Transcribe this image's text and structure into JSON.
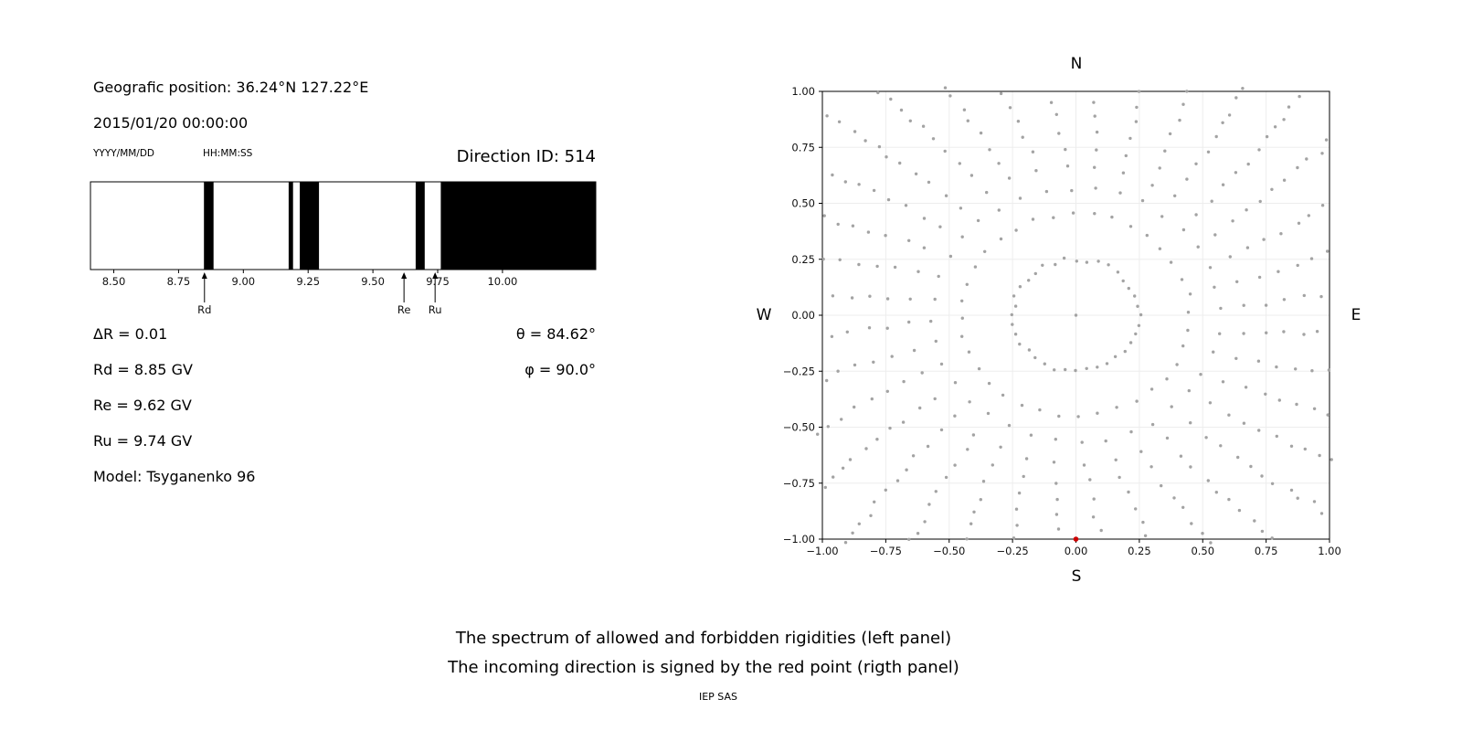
{
  "background": "#ffffff",
  "left_panel": {
    "geographic_position": "Geografic position: 36.24°N 127.22°E",
    "datetime": "2015/01/20 00:00:00",
    "date_format_label": "YYYY/MM/DD",
    "time_format_label": "HH:MM:SS",
    "direction_id": "Direction ID: 514",
    "params": {
      "delta_r": "ΔR = 0.01",
      "rd": "Rd = 8.85 GV",
      "re": "Re = 9.62 GV",
      "ru": "Ru = 9.74 GV",
      "model": "Model: Tsyganenko 96",
      "theta": "θ = 84.62°",
      "phi": "φ = 90.0°"
    }
  },
  "caption": {
    "line1": "The spectrum of allowed and forbidden rigidities (left panel)",
    "line2": "The incoming direction is signed by the red point (rigth panel)",
    "credit": "IEP SAS"
  },
  "chart_data": [
    {
      "type": "bar",
      "name": "rigidity-spectrum",
      "title": "",
      "xlabel": "",
      "ylabel": "",
      "xlim": [
        8.41,
        10.36
      ],
      "xticks": [
        8.5,
        8.75,
        9.0,
        9.25,
        9.5,
        9.75,
        10.0
      ],
      "xtick_labels": [
        "8.50",
        "8.75",
        "9.00",
        "9.25",
        "9.50",
        "9.75",
        "10.00"
      ],
      "allowed_color": "#ffffff",
      "forbidden_color": "#000000",
      "forbidden_bands_gv": [
        [
          8.848,
          8.885
        ],
        [
          9.175,
          9.192
        ],
        [
          9.218,
          9.292
        ],
        [
          9.665,
          9.7
        ],
        [
          9.762,
          10.36
        ]
      ],
      "markers": [
        {
          "label": "Rd",
          "value": 8.85
        },
        {
          "label": "Re",
          "value": 9.62
        },
        {
          "label": "Ru",
          "value": 9.74
        }
      ]
    },
    {
      "type": "scatter",
      "name": "incoming-direction-map",
      "compass": {
        "top": "N",
        "bottom": "S",
        "left": "W",
        "right": "E"
      },
      "xlim": [
        -1,
        1
      ],
      "ylim": [
        -1,
        1
      ],
      "xticks": [
        -1,
        -0.75,
        -0.5,
        -0.25,
        0,
        0.25,
        0.5,
        0.75,
        1
      ],
      "yticks": [
        -1,
        -0.75,
        -0.5,
        -0.25,
        0,
        0.25,
        0.5,
        0.75,
        1
      ],
      "xtick_labels": [
        "−1.00",
        "−0.75",
        "−0.50",
        "−0.25",
        "0.00",
        "0.25",
        "0.50",
        "0.75",
        "1.00"
      ],
      "ytick_labels": [
        "−1.00",
        "−0.75",
        "−0.50",
        "−0.25",
        "0.00",
        "0.25",
        "0.50",
        "0.75",
        "1.00"
      ],
      "grid": true,
      "grid_color": "#ededed",
      "dot_color": "#a3a3a3",
      "center_point": {
        "x": 0.0,
        "y": 0.0
      },
      "red_point": {
        "x": 0.0,
        "y": -1.0,
        "color": "#cc0000"
      },
      "spokes": {
        "count": 36,
        "r_min": 0.25,
        "r_max": 1.42,
        "dots_per_spoke": 16,
        "twist_deg": 9,
        "density_power": 0.65,
        "clip": 1.02
      }
    }
  ]
}
